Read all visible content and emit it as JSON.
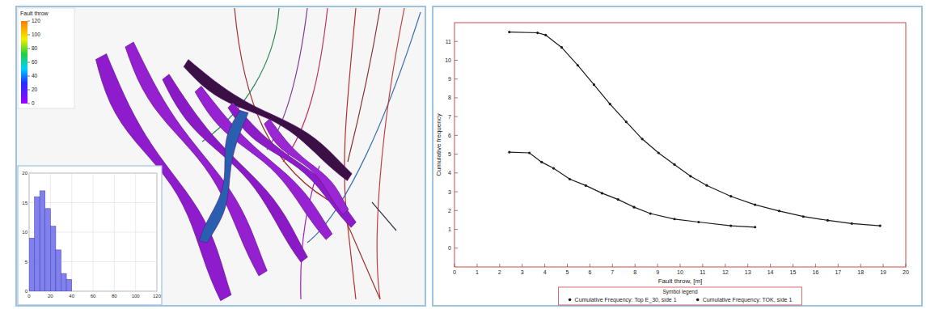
{
  "chart_data": [
    {
      "type": "histogram",
      "bins": [
        0,
        5,
        10,
        15,
        20,
        25,
        30,
        35,
        40
      ],
      "values": [
        9,
        16,
        17,
        14,
        11,
        7,
        3,
        2
      ],
      "color": "#8080ee",
      "xlim": [
        0,
        120
      ],
      "xticks": [
        0,
        20,
        40,
        60,
        80,
        100,
        120
      ],
      "ylim": [
        0,
        20
      ],
      "yticks": [
        0,
        5,
        10,
        15,
        20
      ],
      "grid": true
    },
    {
      "type": "scatter",
      "x_label": "Fault throw, [m]",
      "y_label": "Cumulative frequency",
      "xlim": [
        0,
        20
      ],
      "xticks": [
        0,
        1,
        2,
        3,
        4,
        5,
        6,
        7,
        8,
        9,
        10,
        11,
        12,
        13,
        14,
        15,
        16,
        17,
        18,
        19,
        20
      ],
      "ylim": [
        -1,
        12
      ],
      "yticks": [
        0,
        1,
        2,
        3,
        4,
        5,
        6,
        7,
        8,
        9,
        10,
        11
      ],
      "legend": "bottom",
      "legend_title": "Symbol legend",
      "series": [
        {
          "name": "Cumulative Frequency: Top E_30, side 1",
          "color": "#1a1a1a",
          "marker": "circle",
          "line_style": "solid",
          "x": [
            2.43,
            3.68,
            4.04,
            4.75,
            5.46,
            6.18,
            6.89,
            7.61,
            8.32,
            9.04,
            9.75,
            10.46,
            11.18,
            12.25,
            13.32,
            14.39,
            15.46,
            16.54,
            17.61,
            18.86
          ],
          "values": [
            11.5,
            11.46,
            11.34,
            10.68,
            9.73,
            8.7,
            7.67,
            6.72,
            5.81,
            5.07,
            4.45,
            3.83,
            3.34,
            2.76,
            2.31,
            1.98,
            1.68,
            1.48,
            1.31,
            1.19
          ]
        },
        {
          "name": "Cumulative Frequency: TOK, side 1",
          "color": "#1a1a1a",
          "marker": "circle",
          "line_style": "solid",
          "x": [
            2.43,
            3.32,
            3.86,
            4.39,
            5.11,
            5.82,
            6.54,
            7.25,
            7.96,
            8.68,
            9.75,
            10.82,
            12.25,
            13.32
          ],
          "values": [
            5.11,
            5.07,
            4.58,
            4.25,
            3.67,
            3.33,
            2.92,
            2.59,
            2.18,
            1.84,
            1.55,
            1.39,
            1.19,
            1.12
          ]
        }
      ]
    }
  ],
  "fault_view": {
    "title": "Fault throw",
    "colorbar": {
      "range": [
        0,
        120
      ],
      "ticks": [
        0,
        20,
        40,
        60,
        80,
        100,
        120
      ]
    }
  }
}
